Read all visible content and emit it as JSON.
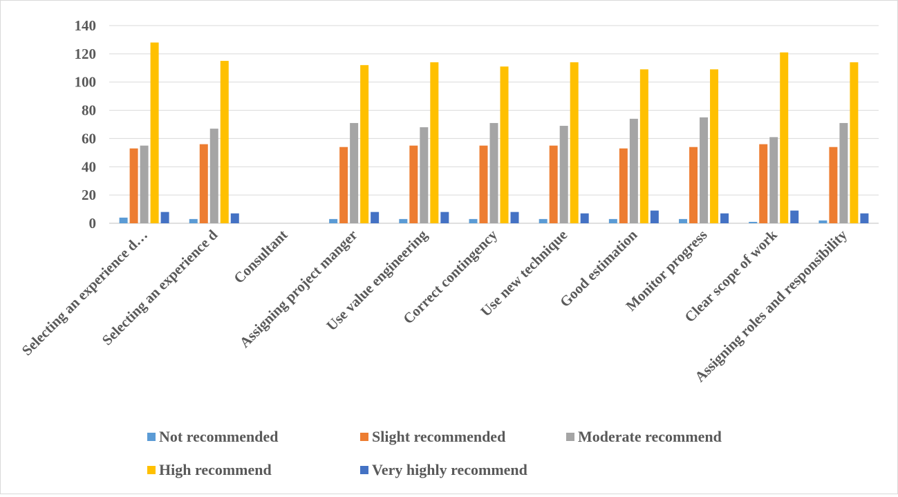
{
  "chart_data": {
    "type": "bar",
    "categories": [
      "Selecting an experience d…",
      "Selecting an experience d",
      "Consultant",
      "Assigning project manger",
      "Use value engineering",
      "Correct contingency",
      "Use new technique",
      "Good estimation",
      "Monitor progress",
      "Clear scope of work",
      "Assigning roles and responsibility"
    ],
    "series": [
      {
        "name": "Not recommended",
        "color": "#5b9bd5",
        "values": [
          4,
          3,
          null,
          3,
          3,
          3,
          3,
          3,
          3,
          1,
          2
        ]
      },
      {
        "name": "Slight recommended",
        "color": "#ed7d31",
        "values": [
          53,
          56,
          null,
          54,
          55,
          55,
          55,
          53,
          54,
          56,
          54
        ]
      },
      {
        "name": "Moderate recommend",
        "color": "#a5a5a5",
        "values": [
          55,
          67,
          null,
          71,
          68,
          71,
          69,
          74,
          75,
          61,
          71
        ]
      },
      {
        "name": "High recommend",
        "color": "#ffc000",
        "values": [
          128,
          115,
          null,
          112,
          114,
          111,
          114,
          109,
          109,
          121,
          114
        ]
      },
      {
        "name": "Very highly recommend",
        "color": "#4472c4",
        "values": [
          8,
          7,
          null,
          8,
          8,
          8,
          7,
          9,
          7,
          9,
          7
        ]
      }
    ],
    "title": "",
    "xlabel": "",
    "ylabel": "",
    "ylim": [
      0,
      140
    ],
    "yticks": [
      0,
      20,
      40,
      60,
      80,
      100,
      120,
      140
    ],
    "grid": true,
    "legend_position": "bottom"
  }
}
